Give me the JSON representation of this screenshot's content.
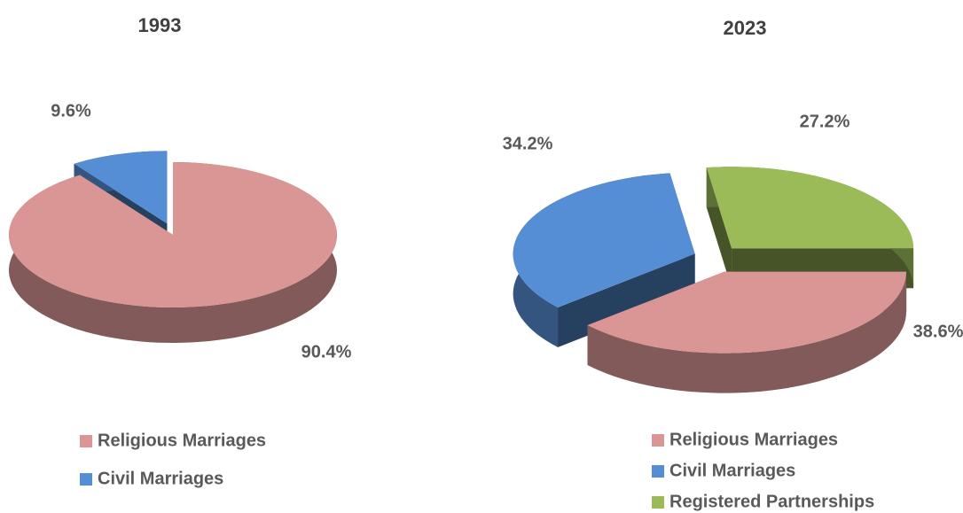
{
  "chart_data": [
    {
      "type": "pie",
      "title": "1993",
      "categories": [
        "Religious Marriages",
        "Civil Marriages"
      ],
      "values": [
        90.4,
        9.6
      ],
      "value_labels": [
        "90.4%",
        "9.6%"
      ],
      "colors": [
        "#d99694",
        "#558ed5"
      ]
    },
    {
      "type": "pie",
      "title": "2023",
      "categories": [
        "Religious Marriages",
        "Civil Marriages",
        "Registered Partnerships"
      ],
      "values": [
        38.6,
        34.2,
        27.2
      ],
      "value_labels": [
        "38.6%",
        "34.2%",
        "27.2%"
      ],
      "colors": [
        "#d99694",
        "#558ed5",
        "#9bbb59"
      ]
    }
  ]
}
